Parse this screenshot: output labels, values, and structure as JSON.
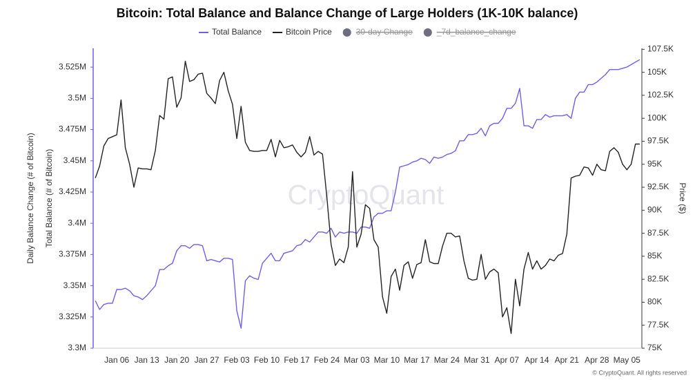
{
  "chart_data": {
    "type": "line",
    "title": "Bitcoin: Total Balance and Balance Change of Large Holders (1K-10K balance)",
    "y_outer_label": "Daily Balance Change (# of Bitcoin)",
    "ylabel": "Total Balance (# of Bitcoin)",
    "y2label": "Price ($)",
    "watermark": "CryptoQuant",
    "footer": "© CryptoQuant. All rights reserved",
    "categories": [
      null,
      null,
      null,
      null,
      null,
      "Jan 06",
      null,
      null,
      null,
      null,
      null,
      null,
      "Jan 13",
      null,
      null,
      null,
      null,
      null,
      null,
      "Jan 20",
      null,
      null,
      null,
      null,
      null,
      null,
      "Jan 27",
      null,
      null,
      null,
      null,
      null,
      null,
      "Feb 03",
      null,
      null,
      null,
      null,
      null,
      null,
      "Feb 10",
      null,
      null,
      null,
      null,
      null,
      null,
      "Feb 17",
      null,
      null,
      null,
      null,
      null,
      null,
      "Feb 24",
      null,
      null,
      null,
      null,
      null,
      null,
      "Mar 03",
      null,
      null,
      null,
      null,
      null,
      null,
      "Mar 10",
      null,
      null,
      null,
      null,
      null,
      null,
      "Mar 17",
      null,
      null,
      null,
      null,
      null,
      null,
      "Mar 24",
      null,
      null,
      null,
      null,
      null,
      null,
      "Mar 31",
      null,
      null,
      null,
      null,
      null,
      null,
      "Apr 07",
      null,
      null,
      null,
      null,
      null,
      null,
      "Apr 14",
      null,
      null,
      null,
      null,
      null,
      null,
      "Apr 21",
      null,
      null,
      null,
      null,
      null,
      null,
      "Apr 28",
      null,
      null,
      null,
      null,
      null,
      null,
      "May 05",
      null,
      null,
      null
    ],
    "series": [
      {
        "name": "Total Balance",
        "color": "#6f5fe8",
        "axis": "y",
        "values": [
          3338000,
          3331000,
          3335000,
          3336000,
          3336000,
          3347000,
          3347000,
          3348000,
          3346000,
          3342000,
          3341000,
          3339000,
          3342000,
          3346000,
          3350000,
          3363000,
          3363000,
          3366000,
          3368000,
          3378000,
          3382000,
          3382000,
          3380000,
          3383000,
          3383000,
          3382000,
          3370000,
          3371000,
          3370000,
          3369000,
          3372000,
          3372000,
          3371000,
          3330000,
          3316000,
          3354000,
          3358000,
          3356000,
          3355000,
          3368000,
          3372000,
          3376000,
          3370000,
          3370000,
          3376000,
          3377000,
          3378000,
          3382000,
          3383000,
          3387000,
          3385000,
          3389000,
          3393000,
          3393000,
          3392000,
          3396000,
          3389000,
          3393000,
          3392000,
          3393000,
          3393000,
          3392000,
          3397000,
          3397000,
          3396000,
          3405000,
          3408000,
          3408000,
          3410000,
          3410000,
          3425000,
          3445000,
          3446000,
          3447000,
          3449000,
          3450000,
          3452000,
          3451000,
          3448000,
          3453000,
          3452000,
          3453000,
          3455000,
          3456000,
          3458000,
          3466000,
          3466000,
          3471000,
          3471000,
          3472000,
          3476000,
          3470000,
          3478000,
          3480000,
          3480000,
          3484000,
          3492000,
          3492000,
          3496000,
          3508000,
          3478000,
          3478000,
          3476000,
          3483000,
          3483000,
          3487000,
          3485000,
          3486000,
          3486000,
          3486000,
          3487000,
          3484000,
          3500000,
          3505000,
          3505000,
          3511000,
          3511000,
          3513000,
          3516000,
          3519000,
          3523000,
          3523000,
          3523000,
          3524000,
          3525000,
          3527000,
          3529000,
          3531000
        ]
      },
      {
        "name": "Bitcoin Price",
        "color": "#222222",
        "axis": "y2",
        "values": [
          93500,
          94800,
          97000,
          97800,
          98000,
          98200,
          102000,
          96800,
          95000,
          92500,
          94600,
          94500,
          94500,
          94400,
          96500,
          100300,
          99900,
          104300,
          104500,
          101200,
          102200,
          106200,
          104000,
          104200,
          104800,
          104900,
          102700,
          102200,
          101600,
          104100,
          105000,
          103000,
          101500,
          97800,
          101300,
          97400,
          96500,
          96400,
          96400,
          96500,
          96500,
          97700,
          95800,
          97600,
          96800,
          96900,
          97100,
          96300,
          95800,
          96300,
          98000,
          96000,
          96400,
          96100,
          91500,
          86300,
          84000,
          84700,
          84300,
          86000,
          94200,
          86000,
          87400,
          90600,
          90200,
          86800,
          86000,
          80600,
          78800,
          82800,
          83600,
          81300,
          84000,
          84400,
          82600,
          84100,
          84300,
          86800,
          84400,
          84200,
          84200,
          86100,
          87500,
          87500,
          87100,
          87200,
          84500,
          82600,
          82400,
          82500,
          85200,
          82500,
          83300,
          83600,
          83200,
          78400,
          79400,
          76600,
          82500,
          79600,
          83600,
          85400,
          83600,
          84500,
          83600,
          84000,
          84700,
          84500,
          85100,
          85300,
          87400,
          93500,
          93700,
          93800,
          94700,
          94600,
          93800,
          95000,
          94400,
          94300,
          96400,
          96800,
          96300,
          95000,
          94400,
          95000,
          97200,
          97200
        ]
      },
      {
        "name": "30-day Change",
        "color": "#6e6e80",
        "hidden": true
      },
      {
        "name": "_7d_balance_change",
        "color": "#6e6e80",
        "hidden": true
      }
    ],
    "ylim": [
      3300000,
      3540000
    ],
    "yticks": [
      {
        "value": 3300000,
        "label": "3.3M"
      },
      {
        "value": 3325000,
        "label": "3.325M"
      },
      {
        "value": 3350000,
        "label": "3.35M"
      },
      {
        "value": 3375000,
        "label": "3.375M"
      },
      {
        "value": 3400000,
        "label": "3.4M"
      },
      {
        "value": 3425000,
        "label": "3.425M"
      },
      {
        "value": 3450000,
        "label": "3.45M"
      },
      {
        "value": 3475000,
        "label": "3.475M"
      },
      {
        "value": 3500000,
        "label": "3.5M"
      },
      {
        "value": 3525000,
        "label": "3.525M"
      }
    ],
    "y2lim": [
      75000,
      107600
    ],
    "y2ticks": [
      {
        "value": 75000,
        "label": "75K"
      },
      {
        "value": 77500,
        "label": "77.5K"
      },
      {
        "value": 80000,
        "label": "80K"
      },
      {
        "value": 82500,
        "label": "82.5K"
      },
      {
        "value": 85000,
        "label": "85K"
      },
      {
        "value": 87500,
        "label": "87.5K"
      },
      {
        "value": 90000,
        "label": "90K"
      },
      {
        "value": 92500,
        "label": "92.5K"
      },
      {
        "value": 95000,
        "label": "95K"
      },
      {
        "value": 97500,
        "label": "97.5K"
      },
      {
        "value": 100000,
        "label": "100K"
      },
      {
        "value": 102500,
        "label": "102.5K"
      },
      {
        "value": 105000,
        "label": "105K"
      },
      {
        "value": 107500,
        "label": "107.5K"
      }
    ],
    "grid": false
  }
}
